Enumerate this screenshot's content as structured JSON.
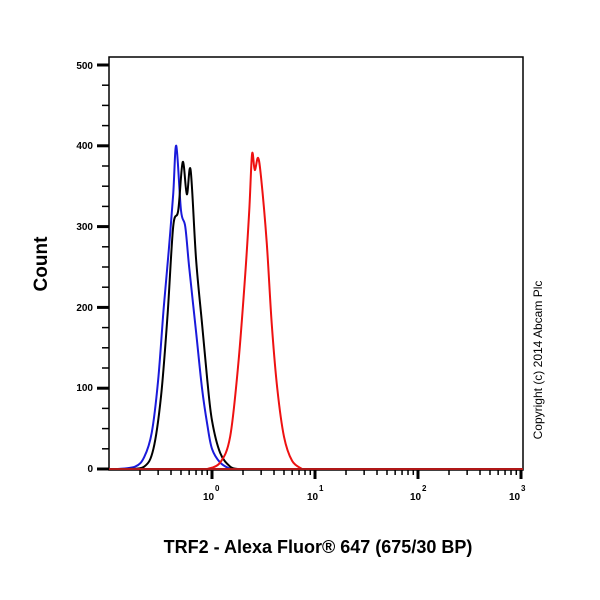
{
  "chart_data": {
    "type": "line",
    "subtype": "flow-cytometry-histogram",
    "title": "",
    "xlabel": "TRF2 - Alexa Fluor® 647 (675/30 BP)",
    "ylabel": "Count",
    "xscale": "log",
    "xlim": [
      0.1,
      1000
    ],
    "ylim": [
      0,
      500
    ],
    "x_ticks": [
      {
        "value": 1,
        "base": "10",
        "exp": "0"
      },
      {
        "value": 10,
        "base": "10",
        "exp": "1"
      },
      {
        "value": 100,
        "base": "10",
        "exp": "2"
      },
      {
        "value": 1000,
        "base": "10",
        "exp": "3"
      }
    ],
    "y_ticks": [
      "0",
      "100",
      "200",
      "300",
      "400",
      "500"
    ],
    "grid": false,
    "legend": null,
    "annotation": "Copyright (c) 2014 Abcam Plc",
    "series": [
      {
        "name": "blue",
        "color": "#1a1adb",
        "points": [
          [
            0.12,
            0
          ],
          [
            0.18,
            3
          ],
          [
            0.22,
            15
          ],
          [
            0.26,
            45
          ],
          [
            0.3,
            110
          ],
          [
            0.34,
            200
          ],
          [
            0.38,
            270
          ],
          [
            0.42,
            340
          ],
          [
            0.45,
            400
          ],
          [
            0.5,
            320
          ],
          [
            0.55,
            300
          ],
          [
            0.6,
            250
          ],
          [
            0.7,
            170
          ],
          [
            0.8,
            100
          ],
          [
            0.9,
            55
          ],
          [
            1.0,
            25
          ],
          [
            1.2,
            8
          ],
          [
            1.5,
            0
          ]
        ]
      },
      {
        "name": "black",
        "color": "#000000",
        "points": [
          [
            0.15,
            0
          ],
          [
            0.22,
            3
          ],
          [
            0.27,
            25
          ],
          [
            0.32,
            90
          ],
          [
            0.37,
            190
          ],
          [
            0.42,
            300
          ],
          [
            0.47,
            320
          ],
          [
            0.52,
            380
          ],
          [
            0.57,
            340
          ],
          [
            0.62,
            370
          ],
          [
            0.7,
            260
          ],
          [
            0.8,
            180
          ],
          [
            0.9,
            110
          ],
          [
            1.0,
            60
          ],
          [
            1.2,
            20
          ],
          [
            1.5,
            3
          ],
          [
            1.8,
            0
          ]
        ]
      },
      {
        "name": "red",
        "color": "#ee1111",
        "points": [
          [
            0.9,
            0
          ],
          [
            1.2,
            8
          ],
          [
            1.5,
            40
          ],
          [
            1.8,
            130
          ],
          [
            2.1,
            240
          ],
          [
            2.3,
            320
          ],
          [
            2.45,
            390
          ],
          [
            2.6,
            370
          ],
          [
            2.8,
            385
          ],
          [
            3.0,
            360
          ],
          [
            3.4,
            280
          ],
          [
            3.8,
            180
          ],
          [
            4.3,
            100
          ],
          [
            5.0,
            40
          ],
          [
            6.0,
            10
          ],
          [
            7.5,
            0
          ]
        ]
      }
    ]
  },
  "axes": {
    "y_title": "Count",
    "x_title": "TRF2 - Alexa Fluor® 647 (675/30 BP)",
    "copyright": "Copyright (c) 2014 Abcam Plc",
    "y_tick_labels": [
      "0",
      "100",
      "200",
      "300",
      "400",
      "500"
    ],
    "x_tick_base": [
      "10",
      "10",
      "10",
      "10"
    ],
    "x_tick_exp": [
      "0",
      "1",
      "2",
      "3"
    ]
  }
}
